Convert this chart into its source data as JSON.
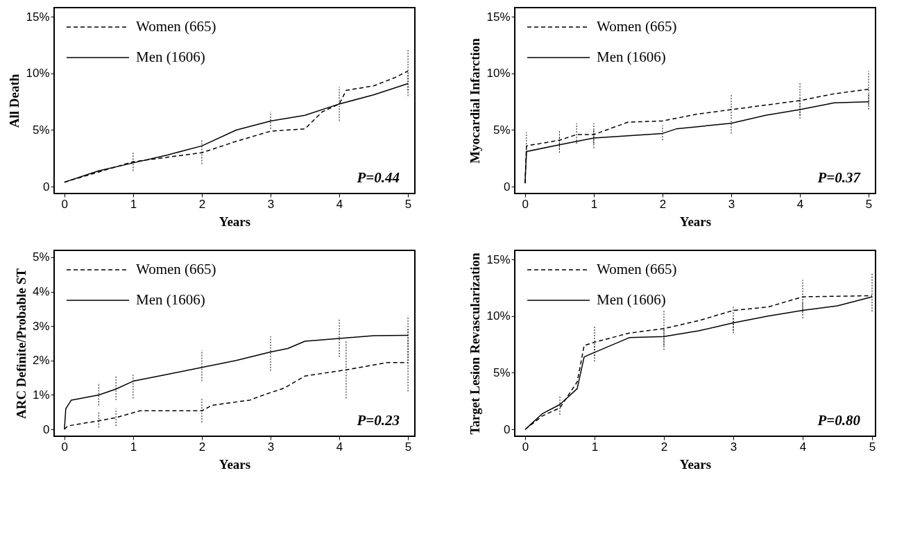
{
  "chart_data": [
    {
      "type": "line",
      "ylabel": "All Death",
      "xlabel": "Years",
      "xlim": [
        -0.15,
        5.1
      ],
      "ylim": [
        -0.6,
        15.8
      ],
      "xticks": [
        0,
        1,
        2,
        3,
        4,
        5
      ],
      "yticks": [
        {
          "value": 0,
          "label": "0"
        },
        {
          "value": 5,
          "label": "5%"
        },
        {
          "value": 10,
          "label": "10%"
        },
        {
          "value": 15,
          "label": "15%"
        }
      ],
      "legend": "top left",
      "grid": false,
      "annotations": [
        "P=0.44"
      ],
      "series": [
        {
          "name": "Women (665)",
          "color": "#000000",
          "line_style": "dashed",
          "x": [
            0,
            0.5,
            1,
            1.5,
            2,
            2.5,
            3,
            3.5,
            3.75,
            4,
            4.1,
            4.5,
            4.8,
            5
          ],
          "values": [
            0.4,
            1.3,
            2.2,
            2.6,
            3.0,
            4.0,
            4.9,
            5.1,
            6.6,
            7.3,
            8.5,
            8.9,
            9.6,
            10.2
          ],
          "errors": [
            null,
            null,
            [
              1.4,
              3.0
            ],
            null,
            [
              2.0,
              4.1
            ],
            null,
            null,
            null,
            null,
            [
              5.8,
              8.8
            ],
            null,
            null,
            null,
            [
              8.5,
              12.1
            ]
          ]
        },
        {
          "name": "Men (1606)",
          "color": "#000000",
          "line_style": "solid",
          "x": [
            0,
            0.5,
            1,
            1.5,
            2,
            2.5,
            3,
            3.5,
            4,
            4.5,
            5
          ],
          "values": [
            0.4,
            1.4,
            2.1,
            2.8,
            3.6,
            5.0,
            5.8,
            6.3,
            7.3,
            8.1,
            9.1
          ],
          "errors": [
            null,
            null,
            null,
            null,
            null,
            null,
            [
              5.1,
              6.6
            ],
            null,
            null,
            null,
            [
              8.0,
              10.0
            ]
          ]
        }
      ]
    },
    {
      "type": "line",
      "ylabel": "Myocardial Infarction",
      "xlabel": "Years",
      "xlim": [
        -0.15,
        5.1
      ],
      "ylim": [
        -0.6,
        15.8
      ],
      "xticks": [
        0,
        1,
        2,
        3,
        4,
        5
      ],
      "yticks": [
        {
          "value": 0,
          "label": "0"
        },
        {
          "value": 5,
          "label": "5%"
        },
        {
          "value": 10,
          "label": "10%"
        },
        {
          "value": 15,
          "label": "15%"
        }
      ],
      "legend": "top left",
      "grid": false,
      "annotations": [
        "P=0.37"
      ],
      "series": [
        {
          "name": "Women (665)",
          "color": "#000000",
          "line_style": "dashed",
          "x": [
            0,
            0.02,
            0.5,
            0.75,
            1,
            1.5,
            2,
            2.5,
            3,
            3.5,
            4,
            4.5,
            5
          ],
          "values": [
            0.3,
            3.6,
            4.1,
            4.6,
            4.6,
            5.7,
            5.8,
            6.4,
            6.8,
            7.2,
            7.6,
            8.2,
            8.6
          ],
          "errors": [
            null,
            [
              3.0,
              4.8
            ],
            [
              3.3,
              5.0
            ],
            [
              3.8,
              5.6
            ],
            [
              3.8,
              5.6
            ],
            null,
            null,
            null,
            [
              6.0,
              8.2
            ],
            null,
            [
              6.3,
              9.2
            ],
            null,
            [
              7.2,
              10.2
            ]
          ]
        },
        {
          "name": "Men (1606)",
          "color": "#000000",
          "line_style": "solid",
          "x": [
            0,
            0.02,
            0.5,
            1,
            1.5,
            2,
            2.2,
            3,
            3.5,
            4,
            4.5,
            5
          ],
          "values": [
            0.3,
            3.1,
            3.7,
            4.3,
            4.5,
            4.7,
            5.1,
            5.6,
            6.3,
            6.8,
            7.4,
            7.5
          ],
          "errors": [
            null,
            [
              2.5,
              3.6
            ],
            [
              3.0,
              4.3
            ],
            [
              3.4,
              5.0
            ],
            null,
            [
              4.1,
              5.4
            ],
            null,
            [
              4.7,
              5.9
            ],
            null,
            [
              6.0,
              7.8
            ],
            null,
            [
              6.8,
              8.2
            ]
          ]
        }
      ]
    },
    {
      "type": "line",
      "ylabel": "ARC Definite/Probable ST",
      "xlabel": "Years",
      "xlim": [
        -0.15,
        5.1
      ],
      "ylim": [
        -0.2,
        5.2
      ],
      "xticks": [
        0,
        1,
        2,
        3,
        4,
        5
      ],
      "yticks": [
        {
          "value": 0,
          "label": "0"
        },
        {
          "value": 1,
          "label": "1%"
        },
        {
          "value": 2,
          "label": "2%"
        },
        {
          "value": 3,
          "label": "3%"
        },
        {
          "value": 4,
          "label": "4%"
        },
        {
          "value": 5,
          "label": "5%"
        }
      ],
      "legend": "top left",
      "grid": false,
      "annotations": [
        "P=0.23"
      ],
      "series": [
        {
          "name": "Women (665)",
          "color": "#000000",
          "line_style": "dashed",
          "x": [
            0,
            0.05,
            0.5,
            0.75,
            1.1,
            2,
            2.15,
            2.7,
            2.9,
            3.2,
            3.5,
            4.1,
            4.7,
            5
          ],
          "values": [
            0,
            0.1,
            0.25,
            0.34,
            0.54,
            0.54,
            0.7,
            0.85,
            1.0,
            1.2,
            1.55,
            1.73,
            1.94,
            1.94
          ],
          "errors": [
            null,
            null,
            [
              0.05,
              0.5
            ],
            [
              0.1,
              0.6
            ],
            null,
            [
              0.2,
              0.9
            ],
            null,
            null,
            null,
            null,
            null,
            [
              0.9,
              2.6
            ],
            null,
            [
              1.1,
              2.9
            ]
          ]
        },
        {
          "name": "Men (1606)",
          "color": "#000000",
          "line_style": "solid",
          "x": [
            0,
            0.02,
            0.1,
            0.5,
            0.75,
            1,
            1.5,
            2,
            2.5,
            3,
            3.25,
            3.5,
            4,
            4.5,
            5
          ],
          "values": [
            0,
            0.6,
            0.85,
            1.0,
            1.17,
            1.4,
            1.6,
            1.8,
            2.0,
            2.25,
            2.35,
            2.56,
            2.64,
            2.72,
            2.73
          ],
          "errors": [
            null,
            null,
            null,
            [
              0.7,
              1.35
            ],
            [
              0.85,
              1.55
            ],
            [
              0.9,
              1.6
            ],
            null,
            [
              1.4,
              2.3
            ],
            null,
            [
              1.7,
              2.7
            ],
            null,
            null,
            [
              2.1,
              3.2
            ],
            null,
            [
              2.0,
              3.3
            ]
          ]
        }
      ]
    },
    {
      "type": "line",
      "ylabel": "Target Lesion Revascularization",
      "xlabel": "Years",
      "xlim": [
        -0.15,
        5.05
      ],
      "ylim": [
        -0.6,
        15.8
      ],
      "xticks": [
        0,
        1,
        2,
        3,
        4,
        5
      ],
      "yticks": [
        {
          "value": 0,
          "label": "0"
        },
        {
          "value": 5,
          "label": "5%"
        },
        {
          "value": 10,
          "label": "10%"
        },
        {
          "value": 15,
          "label": "15%"
        }
      ],
      "legend": "top left",
      "grid": false,
      "annotations": [
        "P=0.80"
      ],
      "series": [
        {
          "name": "Women (665)",
          "color": "#000000",
          "line_style": "dashed",
          "x": [
            0,
            0.25,
            0.5,
            0.75,
            0.85,
            1,
            1.5,
            2,
            2.5,
            3,
            3.5,
            4,
            5
          ],
          "values": [
            0,
            1.2,
            1.9,
            4.2,
            7.4,
            7.7,
            8.5,
            8.9,
            9.6,
            10.5,
            10.8,
            11.7,
            11.8
          ],
          "errors": [
            null,
            null,
            [
              1.3,
              2.9
            ],
            null,
            null,
            [
              6.5,
              9.1
            ],
            null,
            [
              7.4,
              10.5
            ],
            null,
            [
              8.5,
              10.9
            ],
            null,
            [
              10.4,
              13.2
            ],
            [
              11.9,
              13.8
            ]
          ]
        },
        {
          "name": "Men (1606)",
          "color": "#000000",
          "line_style": "solid",
          "x": [
            0,
            0.25,
            0.5,
            0.75,
            0.85,
            1,
            1.5,
            2,
            2.5,
            3,
            3.5,
            4,
            4.5,
            5
          ],
          "values": [
            0,
            1.4,
            2.2,
            3.6,
            6.4,
            6.8,
            8.1,
            8.2,
            8.7,
            9.4,
            10.0,
            10.5,
            10.9,
            11.7
          ],
          "errors": [
            null,
            null,
            null,
            null,
            null,
            [
              6.0,
              7.5
            ],
            null,
            [
              7.0,
              8.9
            ],
            null,
            [
              8.7,
              9.9
            ],
            null,
            [
              9.8,
              11.3
            ],
            null,
            [
              10.4,
              11.75
            ]
          ]
        }
      ]
    }
  ]
}
